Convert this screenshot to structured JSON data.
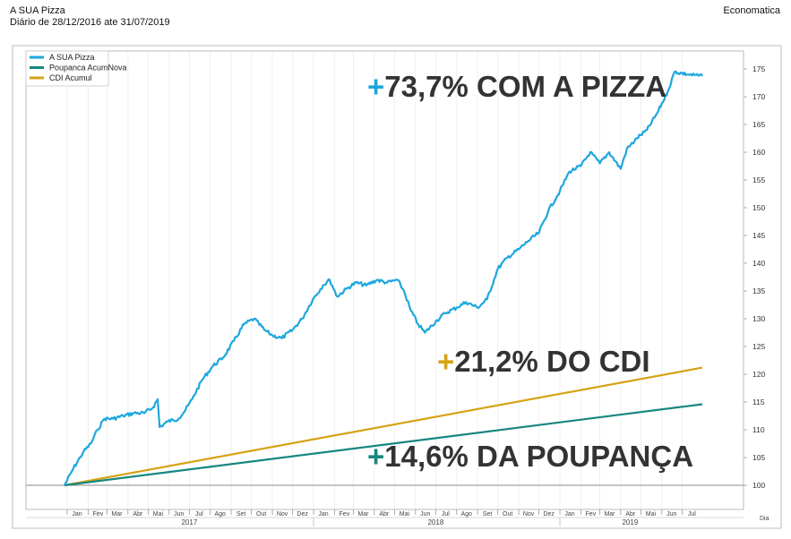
{
  "header": {
    "title": "A SUA Pizza",
    "subtitle": "Diário de 28/12/2016 ate 31/07/2019",
    "source": "Economatica"
  },
  "chart_data": {
    "type": "line",
    "xlabel": "Dia",
    "ylim": [
      97,
      177
    ],
    "y_ticks": [
      100,
      105,
      110,
      115,
      120,
      125,
      130,
      135,
      140,
      145,
      150,
      155,
      160,
      165,
      170,
      175
    ],
    "x_start": "2016-12-28",
    "x_end": "2019-07-31",
    "month_ticks": [
      {
        "label": "Jan",
        "date": "2017-01-01"
      },
      {
        "label": "Fev",
        "date": "2017-02-01"
      },
      {
        "label": "Mar",
        "date": "2017-03-01"
      },
      {
        "label": "Abr",
        "date": "2017-04-01"
      },
      {
        "label": "Mai",
        "date": "2017-05-01"
      },
      {
        "label": "Jun",
        "date": "2017-06-01"
      },
      {
        "label": "Jul",
        "date": "2017-07-01"
      },
      {
        "label": "Ago",
        "date": "2017-08-01"
      },
      {
        "label": "Set",
        "date": "2017-09-01"
      },
      {
        "label": "Out",
        "date": "2017-10-01"
      },
      {
        "label": "Nov",
        "date": "2017-11-01"
      },
      {
        "label": "Dez",
        "date": "2017-12-01"
      },
      {
        "label": "Jan",
        "date": "2018-01-01"
      },
      {
        "label": "Fev",
        "date": "2018-02-01"
      },
      {
        "label": "Mar",
        "date": "2018-03-01"
      },
      {
        "label": "Abr",
        "date": "2018-04-01"
      },
      {
        "label": "Mai",
        "date": "2018-05-01"
      },
      {
        "label": "Jun",
        "date": "2018-06-01"
      },
      {
        "label": "Jul",
        "date": "2018-07-01"
      },
      {
        "label": "Ago",
        "date": "2018-08-01"
      },
      {
        "label": "Set",
        "date": "2018-09-01"
      },
      {
        "label": "Out",
        "date": "2018-10-01"
      },
      {
        "label": "Nov",
        "date": "2018-11-01"
      },
      {
        "label": "Dez",
        "date": "2018-12-01"
      },
      {
        "label": "Jan",
        "date": "2019-01-01"
      },
      {
        "label": "Fev",
        "date": "2019-02-01"
      },
      {
        "label": "Mar",
        "date": "2019-03-01"
      },
      {
        "label": "Abr",
        "date": "2019-04-01"
      },
      {
        "label": "Mai",
        "date": "2019-05-01"
      },
      {
        "label": "Jun",
        "date": "2019-06-01"
      },
      {
        "label": "Jul",
        "date": "2019-07-01"
      }
    ],
    "year_ticks": [
      {
        "label": "2017",
        "date": "2017-07-01"
      },
      {
        "label": "2018",
        "date": "2018-07-01"
      },
      {
        "label": "2019",
        "date": "2019-04-15"
      }
    ],
    "legend_position": "top-left",
    "grid": "vertical",
    "series": [
      {
        "name": "A SUA Pizza",
        "color": "#1EA7DD",
        "points": [
          [
            "2016-12-28",
            100
          ],
          [
            "2017-01-10",
            103
          ],
          [
            "2017-01-25",
            106
          ],
          [
            "2017-02-05",
            107.5
          ],
          [
            "2017-02-15",
            110
          ],
          [
            "2017-02-25",
            112
          ],
          [
            "2017-03-10",
            112
          ],
          [
            "2017-03-25",
            112.5
          ],
          [
            "2017-04-10",
            113
          ],
          [
            "2017-04-25",
            113
          ],
          [
            "2017-05-08",
            114
          ],
          [
            "2017-05-15",
            115.5
          ],
          [
            "2017-05-18",
            110.5
          ],
          [
            "2017-05-30",
            111.5
          ],
          [
            "2017-06-15",
            112
          ],
          [
            "2017-06-25",
            113.5
          ],
          [
            "2017-07-05",
            115.5
          ],
          [
            "2017-07-20",
            119
          ],
          [
            "2017-08-05",
            121.5
          ],
          [
            "2017-08-20",
            123
          ],
          [
            "2017-09-05",
            126
          ],
          [
            "2017-09-20",
            129
          ],
          [
            "2017-10-05",
            130
          ],
          [
            "2017-10-20",
            128
          ],
          [
            "2017-11-01",
            127
          ],
          [
            "2017-11-15",
            126.5
          ],
          [
            "2017-12-01",
            128
          ],
          [
            "2017-12-15",
            130
          ],
          [
            "2017-12-31",
            133.5
          ],
          [
            "2018-01-15",
            136
          ],
          [
            "2018-01-25",
            137
          ],
          [
            "2018-02-05",
            134
          ],
          [
            "2018-02-20",
            135.5
          ],
          [
            "2018-03-05",
            136.5
          ],
          [
            "2018-03-20",
            136
          ],
          [
            "2018-04-05",
            137
          ],
          [
            "2018-04-20",
            136.5
          ],
          [
            "2018-05-05",
            137
          ],
          [
            "2018-05-15",
            135
          ],
          [
            "2018-05-25",
            131.5
          ],
          [
            "2018-06-05",
            129
          ],
          [
            "2018-06-15",
            127.5
          ],
          [
            "2018-07-01",
            129.5
          ],
          [
            "2018-07-15",
            131
          ],
          [
            "2018-08-01",
            132
          ],
          [
            "2018-08-15",
            133
          ],
          [
            "2018-09-01",
            132
          ],
          [
            "2018-09-15",
            133.5
          ],
          [
            "2018-10-01",
            139
          ],
          [
            "2018-10-15",
            141
          ],
          [
            "2018-11-01",
            142.5
          ],
          [
            "2018-11-15",
            144
          ],
          [
            "2018-12-01",
            145.5
          ],
          [
            "2018-12-15",
            149.5
          ],
          [
            "2019-01-01",
            153
          ],
          [
            "2019-01-15",
            156.5
          ],
          [
            "2019-02-01",
            157.5
          ],
          [
            "2019-02-15",
            160
          ],
          [
            "2019-03-01",
            158
          ],
          [
            "2019-03-15",
            160
          ],
          [
            "2019-04-01",
            157
          ],
          [
            "2019-04-10",
            160.5
          ],
          [
            "2019-04-25",
            162.5
          ],
          [
            "2019-05-10",
            164
          ],
          [
            "2019-05-25",
            167
          ],
          [
            "2019-06-10",
            171
          ],
          [
            "2019-06-20",
            174.5
          ],
          [
            "2019-07-10",
            174
          ],
          [
            "2019-07-31",
            173.7
          ]
        ]
      },
      {
        "name": "Poupanca AcumNova",
        "color": "#16877F",
        "points": [
          [
            "2016-12-28",
            100
          ],
          [
            "2019-07-31",
            114.6
          ]
        ]
      },
      {
        "name": "CDI Acumul",
        "color": "#D6A317",
        "points": [
          [
            "2016-12-28",
            100
          ],
          [
            "2019-07-31",
            121.2
          ]
        ]
      }
    ],
    "annotations": [
      {
        "sign": "+",
        "text": "73,7% COM A PIZZA",
        "sign_color": "#1EA7DD",
        "text_color": "#333333"
      },
      {
        "sign": "+",
        "text": "21,2% DO CDI",
        "sign_color": "#D6A317",
        "text_color": "#333333"
      },
      {
        "sign": "+",
        "text": "14,6% DA POUPANÇA",
        "sign_color": "#16877F",
        "text_color": "#333333"
      }
    ]
  }
}
